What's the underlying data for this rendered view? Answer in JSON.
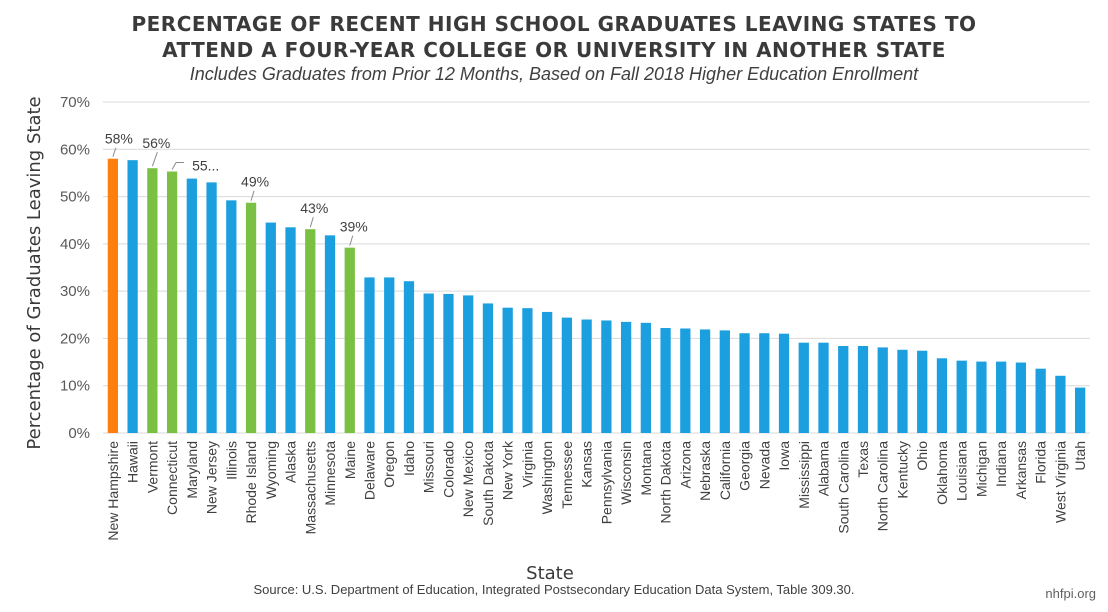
{
  "chart_data": {
    "type": "bar",
    "title_line1": "PERCENTAGE OF RECENT HIGH SCHOOL GRADUATES LEAVING STATES TO",
    "title_line2": "ATTEND A FOUR-YEAR COLLEGE OR UNIVERSITY IN ANOTHER STATE",
    "subtitle": "Includes Graduates from Prior 12 Months, Based on Fall 2018 Higher Education Enrollment",
    "xlabel": "State",
    "ylabel": "Percentage of Graduates Leaving State",
    "ylim": [
      0,
      70
    ],
    "y_ticks": [
      "0%",
      "10%",
      "20%",
      "30%",
      "40%",
      "50%",
      "60%",
      "70%"
    ],
    "grid": true,
    "categories": [
      "New Hampshire",
      "Hawaii",
      "Vermont",
      "Connecticut",
      "Maryland",
      "New Jersey",
      "Illinois",
      "Rhode Island",
      "Wyoming",
      "Alaska",
      "Massachusetts",
      "Minnesota",
      "Maine",
      "Delaware",
      "Oregon",
      "Idaho",
      "Missouri",
      "Colorado",
      "New Mexico",
      "South Dakota",
      "New York",
      "Virginia",
      "Washington",
      "Tennessee",
      "Kansas",
      "Pennsylvania",
      "Wisconsin",
      "Montana",
      "North Dakota",
      "Arizona",
      "Nebraska",
      "California",
      "Georgia",
      "Nevada",
      "Iowa",
      "Mississippi",
      "Alabama",
      "South Carolina",
      "Texas",
      "North Carolina",
      "Kentucky",
      "Ohio",
      "Oklahoma",
      "Louisiana",
      "Michigan",
      "Indiana",
      "Arkansas",
      "Florida",
      "West Virginia",
      "Utah"
    ],
    "values": [
      58,
      57.7,
      56,
      55.3,
      53.8,
      53,
      49.2,
      48.7,
      44.5,
      43.5,
      43.1,
      41.8,
      39.2,
      32.9,
      32.9,
      32.1,
      29.5,
      29.4,
      29.1,
      27.4,
      26.5,
      26.4,
      25.6,
      24.4,
      24,
      23.8,
      23.5,
      23.3,
      22.2,
      22.1,
      21.9,
      21.7,
      21.1,
      21.1,
      21,
      19.1,
      19.1,
      18.4,
      18.4,
      18.1,
      17.6,
      17.4,
      15.8,
      15.3,
      15.1,
      15.1,
      14.9,
      13.6,
      12.1,
      9.6
    ],
    "colors": {
      "highlight": "#ff7f0e",
      "new_england": "#7ac143",
      "other": "#1b9fdf",
      "grid": "#d9d9d9"
    },
    "highlight_index": 0,
    "new_england_indices": [
      2,
      3,
      7,
      10,
      12
    ],
    "data_labels": [
      {
        "index": 0,
        "text": "58%"
      },
      {
        "index": 2,
        "text": "56%"
      },
      {
        "index": 3,
        "text": "55..."
      },
      {
        "index": 7,
        "text": "49%"
      },
      {
        "index": 10,
        "text": "43%"
      },
      {
        "index": 12,
        "text": "39%"
      }
    ]
  },
  "source": "Source: U.S. Department of Education, Integrated Postsecondary Education Data System, Table 309.30.",
  "credit": "nhfpi.org"
}
